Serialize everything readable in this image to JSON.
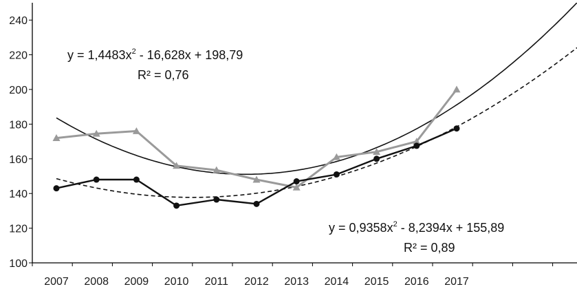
{
  "chart_data": {
    "type": "line",
    "categories": [
      "2007",
      "2008",
      "2009",
      "2010",
      "2011",
      "2012",
      "2013",
      "2014",
      "2015",
      "2016",
      "2017"
    ],
    "ylim": [
      100,
      250
    ],
    "yticks": [
      100,
      120,
      140,
      160,
      180,
      200,
      220,
      240
    ],
    "grid": false,
    "series": [
      {
        "name": "",
        "marker": "triangle",
        "color": "#9a9a9a",
        "values": [
          172,
          174.5,
          176,
          156,
          153.5,
          148,
          143.5,
          161,
          164,
          170,
          200
        ]
      },
      {
        "name": "",
        "marker": "circle",
        "color": "#111111",
        "values": [
          143,
          148,
          148,
          133,
          136.5,
          134,
          147,
          151,
          160,
          167.5,
          177.5
        ]
      }
    ],
    "trendlines": [
      {
        "type": "poly2",
        "style": "solid",
        "color": "#111111",
        "coefficients": [
          1.4483,
          -16.628,
          198.79
        ]
      },
      {
        "type": "poly2",
        "style": "dashed",
        "color": "#111111",
        "coefficients": [
          0.9358,
          -8.2394,
          155.89
        ]
      }
    ],
    "annotations": [
      {
        "id": "eq1",
        "base": "y = 1,4483x",
        "sup": "2",
        "rest": " - 16,628x + 198,79",
        "r2": "R² = 0,76"
      },
      {
        "id": "eq2",
        "base": "y = 0,9358x",
        "sup": "2",
        "rest": " - 8,2394x + 155,89",
        "r2": "R² = 0,89"
      }
    ]
  }
}
